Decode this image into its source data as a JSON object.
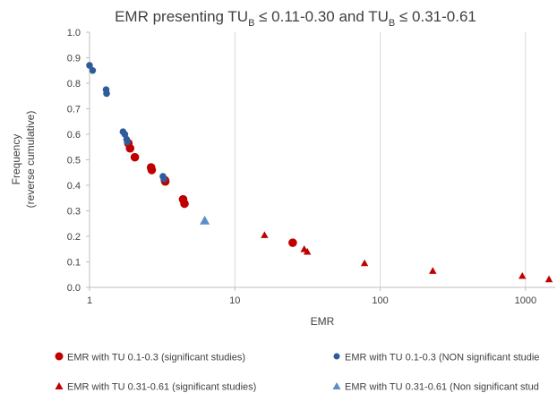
{
  "chart_data": {
    "type": "scatter",
    "title": {
      "prefix": "EMR presenting TU",
      "sub1": "B",
      "mid": " ≤ 0.11-0.30 and TU",
      "sub2": "B",
      "suffix": " ≤ 0.31-0.61"
    },
    "xlabel": "EMR",
    "ylabel_lines": [
      "Frequency",
      "(reverse cumulative)"
    ],
    "x_scale": "log",
    "xlim": [
      1,
      1600
    ],
    "ylim": [
      0,
      1.0
    ],
    "x_ticks": [
      1,
      10,
      100,
      1000
    ],
    "x_tick_labels": [
      "1",
      "10",
      "100",
      "1000"
    ],
    "y_ticks": [
      0,
      0.1,
      0.2,
      0.3,
      0.4,
      0.5,
      0.6,
      0.7,
      0.8,
      0.9,
      1.0
    ],
    "y_tick_labels": [
      "0.0",
      "0.1",
      "0.2",
      "0.3",
      "0.4",
      "0.5",
      "0.6",
      "0.7",
      "0.8",
      "0.9",
      "1.0"
    ],
    "grid": "vertical-major",
    "series": [
      {
        "name": "EMR with TU 0.1-0.3 (significant studies)",
        "marker": "circle",
        "size": "large",
        "color": "#C00000",
        "points": [
          [
            1.85,
            0.565
          ],
          [
            1.9,
            0.545
          ],
          [
            2.05,
            0.51
          ],
          [
            2.65,
            0.47
          ],
          [
            2.68,
            0.46
          ],
          [
            3.3,
            0.42
          ],
          [
            3.32,
            0.415
          ],
          [
            4.4,
            0.345
          ],
          [
            4.5,
            0.328
          ],
          [
            25,
            0.175
          ]
        ]
      },
      {
        "name": "EMR with TU 0.1-0.3 (NON significant studie",
        "marker": "circle",
        "size": "small",
        "color": "#2E5C9A",
        "points": [
          [
            1.0,
            0.87
          ],
          [
            1.05,
            0.85
          ],
          [
            1.3,
            0.775
          ],
          [
            1.31,
            0.76
          ],
          [
            1.7,
            0.61
          ],
          [
            1.75,
            0.6
          ],
          [
            1.8,
            0.58
          ],
          [
            1.82,
            0.57
          ],
          [
            3.2,
            0.435
          ],
          [
            3.25,
            0.425
          ]
        ]
      },
      {
        "name": "EMR with TU 0.31-0.61 (significant studies)",
        "marker": "triangle",
        "size": "small",
        "color": "#C00000",
        "points": [
          [
            16,
            0.205
          ],
          [
            30,
            0.15
          ],
          [
            31.5,
            0.14
          ],
          [
            78,
            0.095
          ],
          [
            230,
            0.065
          ],
          [
            950,
            0.045
          ],
          [
            1450,
            0.032
          ]
        ]
      },
      {
        "name": "EMR with TU 0.31-0.61 (Non significant stud",
        "marker": "triangle",
        "size": "large",
        "color": "#5B8FC9",
        "points": [
          [
            6.2,
            0.262
          ]
        ]
      }
    ]
  }
}
